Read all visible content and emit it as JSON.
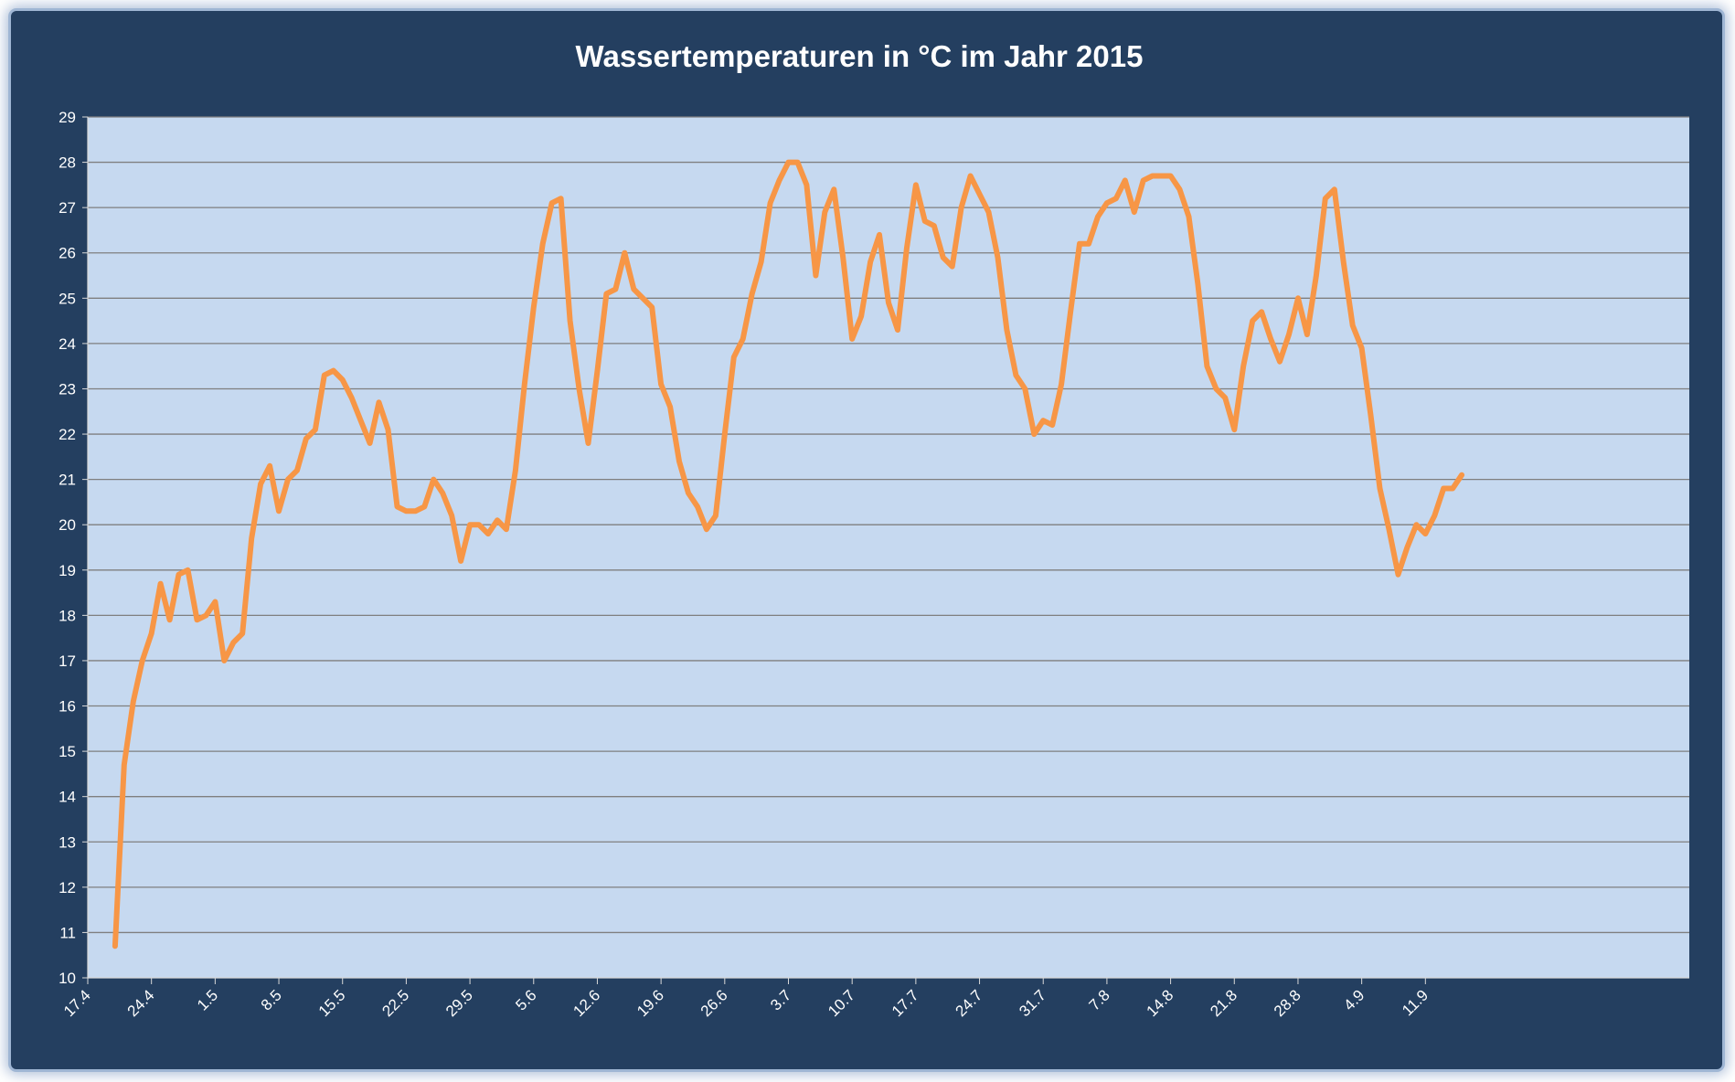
{
  "chart_data": {
    "type": "line",
    "title": "Wassertemperaturen in °C  im Jahr 2015",
    "xlabel": "",
    "ylabel": "",
    "ylim": [
      10,
      29
    ],
    "yticks": [
      "10",
      "11",
      "12",
      "13",
      "14",
      "15",
      "16",
      "17",
      "18",
      "19",
      "20",
      "21",
      "22",
      "23",
      "24",
      "25",
      "26",
      "27",
      "28",
      "29"
    ],
    "xticks": [
      "17.4",
      "24.4",
      "1.5",
      "8.5",
      "15.5",
      "22.5",
      "29.5",
      "5.6",
      "12.6",
      "19.6",
      "26.6",
      "3.7",
      "10.7",
      "17.7",
      "24.7",
      "31.7",
      "7.8",
      "14.8",
      "21.8",
      "28.8",
      "4.9",
      "11.9"
    ],
    "grid": "horizontal",
    "line_color": "#f79646",
    "plot_background": "#c6d9f0",
    "series": [
      {
        "values": [
          10.7,
          14.7,
          16.1,
          17.0,
          17.6,
          18.7,
          17.9,
          18.9,
          19.0,
          17.9,
          18.0,
          18.3,
          17.0,
          17.4,
          17.6,
          19.7,
          20.9,
          21.3,
          20.3,
          21.0,
          21.2,
          21.9,
          22.1,
          23.3,
          23.4,
          23.2,
          22.8,
          22.3,
          21.8,
          22.7,
          22.1,
          20.4,
          20.3,
          20.3,
          20.4,
          21.0,
          20.7,
          20.2,
          19.2,
          20.0,
          20.0,
          19.8,
          20.1,
          19.9,
          21.2,
          23.1,
          24.8,
          26.2,
          27.1,
          27.2,
          24.5,
          23.0,
          21.8,
          23.4,
          25.1,
          25.2,
          26.0,
          25.2,
          25.0,
          24.8,
          23.1,
          22.6,
          21.4,
          20.7,
          20.4,
          19.9,
          20.2,
          22.0,
          23.7,
          24.1,
          25.1,
          25.8,
          27.1,
          27.6,
          28.0,
          28.0,
          27.5,
          25.5,
          26.9,
          27.4,
          25.9,
          24.1,
          24.6,
          25.8,
          26.4,
          24.9,
          24.3,
          26.1,
          27.5,
          26.7,
          26.6,
          25.9,
          25.7,
          27.0,
          27.7,
          27.3,
          26.9,
          25.9,
          24.3,
          23.3,
          23.0,
          22.0,
          22.3,
          22.2,
          23.1,
          24.7,
          26.2,
          26.2,
          26.8,
          27.1,
          27.2,
          27.6,
          26.9,
          27.6,
          27.7,
          27.7,
          27.7,
          27.4,
          26.8,
          25.3,
          23.5,
          23.0,
          22.8,
          22.1,
          23.5,
          24.5,
          24.7,
          24.1,
          23.6,
          24.2,
          25.0,
          24.2,
          25.5,
          27.2,
          27.4,
          25.8,
          24.4,
          23.9,
          22.4,
          20.8,
          19.9,
          18.9,
          19.5,
          20.0,
          19.8,
          20.2,
          20.8,
          20.8,
          21.1
        ]
      }
    ]
  }
}
